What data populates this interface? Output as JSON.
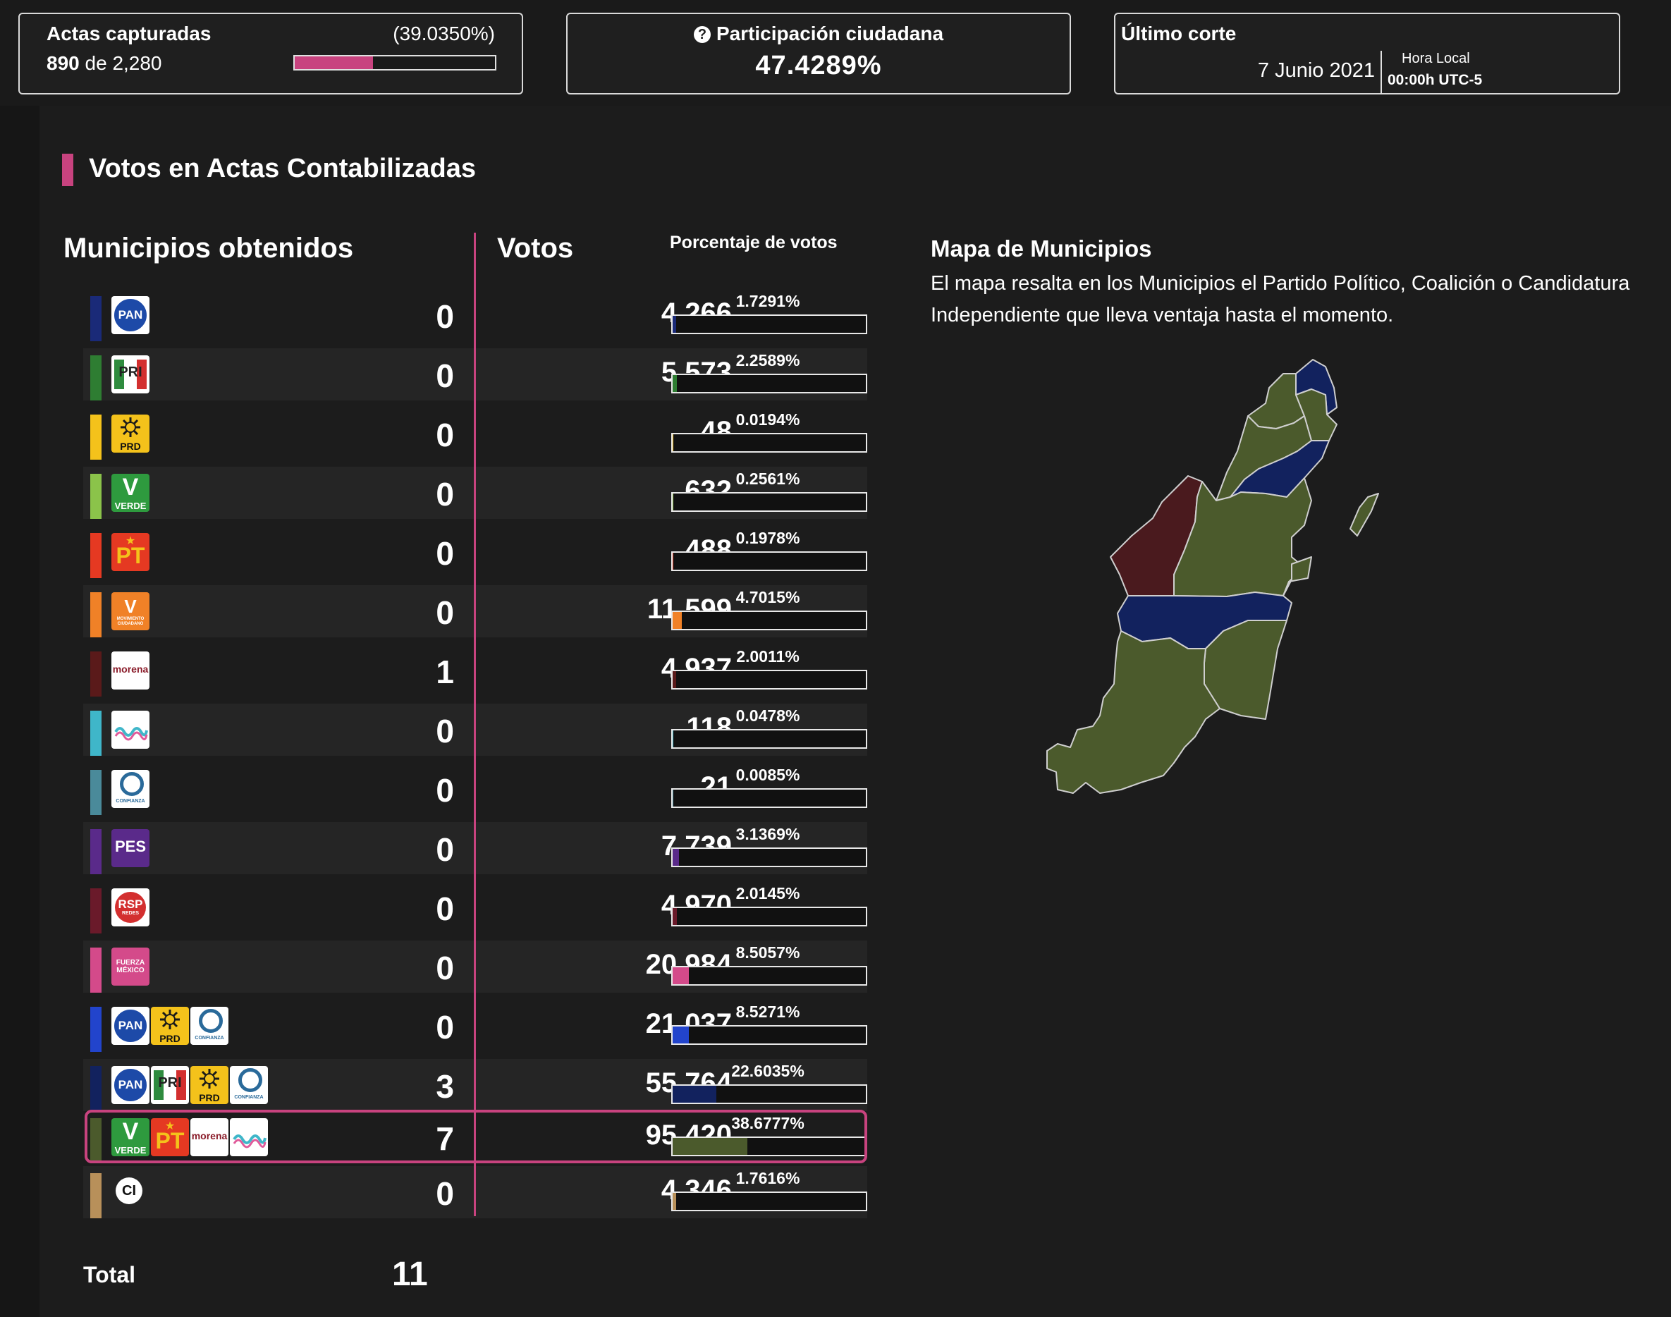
{
  "header": {
    "actas": {
      "title": "Actas capturadas",
      "percent": "(39.0350%)",
      "captured": "890",
      "of": "de",
      "total": "2,280",
      "progress": 0.39035
    },
    "participation": {
      "title": "Participación ciudadana",
      "value": "47.4289%"
    },
    "corte": {
      "title": "Último corte",
      "date": "7 Junio 2021",
      "hora_label": "Hora Local",
      "time": "00:00h UTC-5"
    }
  },
  "section": {
    "title": "Votos en Actas Contabilizadas"
  },
  "table": {
    "col_municipios": "Municipios obtenidos",
    "col_votos": "Votos",
    "col_porcentaje": "Porcentaje de votos",
    "rows": [
      {
        "name": "PAN",
        "color": "#1a2a78",
        "logos": [
          "pan"
        ],
        "municipios": "0",
        "votos": "4,266",
        "pct": "1.7291%",
        "share": 1.7291
      },
      {
        "name": "PRI",
        "color": "#2e7d32",
        "logos": [
          "pri"
        ],
        "municipios": "0",
        "votos": "5,573",
        "pct": "2.2589%",
        "share": 2.2589
      },
      {
        "name": "PRD",
        "color": "#f4c21b",
        "logos": [
          "prd"
        ],
        "municipios": "0",
        "votos": "48",
        "pct": "0.0194%",
        "share": 0.0194
      },
      {
        "name": "VERDE",
        "color": "#8bc34a",
        "logos": [
          "verde"
        ],
        "municipios": "0",
        "votos": "632",
        "pct": "0.2561%",
        "share": 0.2561
      },
      {
        "name": "PT",
        "color": "#e53922",
        "logos": [
          "pt"
        ],
        "municipios": "0",
        "votos": "488",
        "pct": "0.1978%",
        "share": 0.1978
      },
      {
        "name": "MOVIMIENTO CIUDADANO",
        "color": "#f08127",
        "logos": [
          "mc"
        ],
        "municipios": "0",
        "votos": "11,599",
        "pct": "4.7015%",
        "share": 4.7015
      },
      {
        "name": "morena",
        "color": "#5a1a1a",
        "logos": [
          "morena"
        ],
        "municipios": "1",
        "votos": "4,937",
        "pct": "2.0011%",
        "share": 2.0011
      },
      {
        "name": "MAS",
        "color": "#3fb6c9",
        "logos": [
          "mas"
        ],
        "municipios": "0",
        "votos": "118",
        "pct": "0.0478%",
        "share": 0.0478
      },
      {
        "name": "CONFIANZA",
        "color": "#4a8a9a",
        "logos": [
          "confianza"
        ],
        "municipios": "0",
        "votos": "21",
        "pct": "0.0085%",
        "share": 0.0085
      },
      {
        "name": "PES",
        "color": "#5a2a8a",
        "logos": [
          "pes"
        ],
        "municipios": "0",
        "votos": "7,739",
        "pct": "3.1369%",
        "share": 3.1369
      },
      {
        "name": "RSP",
        "color": "#6a1a2a",
        "logos": [
          "rsp"
        ],
        "municipios": "0",
        "votos": "4,970",
        "pct": "2.0145%",
        "share": 2.0145
      },
      {
        "name": "FUERZA MÉXICO",
        "color": "#d44a8a",
        "logos": [
          "fuerza"
        ],
        "municipios": "0",
        "votos": "20,984",
        "pct": "8.5057%",
        "share": 8.5057
      },
      {
        "name": "PAN-PRD-CONFIANZA",
        "color": "#2244cc",
        "logos": [
          "pan",
          "prd",
          "confianza"
        ],
        "municipios": "0",
        "votos": "21,037",
        "pct": "8.5271%",
        "share": 8.5271
      },
      {
        "name": "PAN-PRI-PRD-CONFIANZA",
        "color": "#12225e",
        "logos": [
          "pan",
          "pri",
          "prd",
          "confianza"
        ],
        "municipios": "3",
        "votos": "55,764",
        "pct": "22.6035%",
        "share": 22.6035
      },
      {
        "name": "VERDE-PT-morena-MAS",
        "color": "#4b5a2c",
        "logos": [
          "verde",
          "pt",
          "morena",
          "mas"
        ],
        "municipios": "7",
        "votos": "95,420",
        "pct": "38.6777%",
        "share": 38.6777,
        "highlight": true
      },
      {
        "name": "CI",
        "color": "#b8905a",
        "logos": [
          "ci"
        ],
        "municipios": "0",
        "votos": "4,346",
        "pct": "1.7616%",
        "share": 1.7616
      }
    ],
    "total_label": "Total",
    "total_value": "11"
  },
  "logo_text": {
    "pan": "PAN",
    "pri": "PRI",
    "prd": "PRD",
    "verde": "VERDE",
    "pt": "PT",
    "mc": "MOVIMIENTO CIUDADANO",
    "morena": "morena",
    "pes": "PES",
    "rsp": "RSP",
    "rsp_sub": "REDES",
    "fuerza": "FUERZA MÉXICO",
    "confianza": "CONFIANZA",
    "ci": "CI"
  },
  "map": {
    "title": "Mapa de Municipios",
    "description": "El mapa resalta en los Municipios el Partido Político, Coalición o Candidatura Independiente que lleva ventaja hasta el momento.",
    "colors": {
      "coalition_verde": "#4b5a2c",
      "coalition_pan": "#12225e",
      "morena": "#4a1a1e"
    }
  }
}
